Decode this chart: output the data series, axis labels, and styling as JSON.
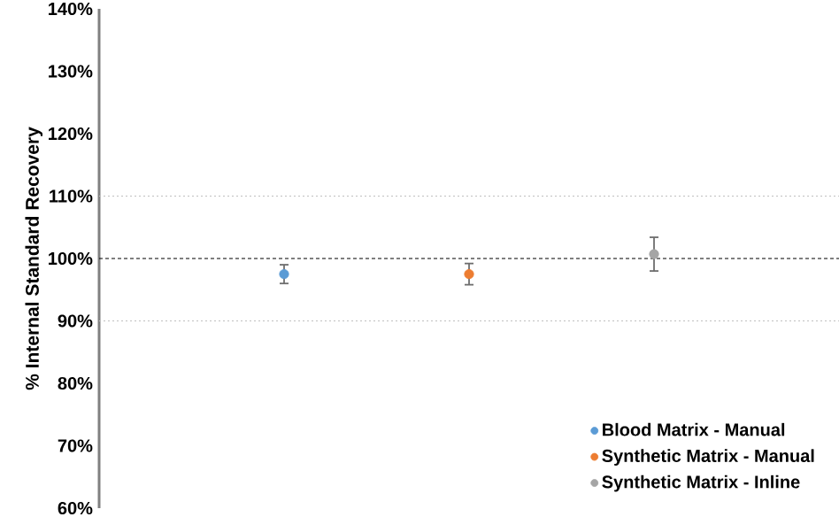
{
  "chart_data": {
    "type": "scatter",
    "ylabel": "% Internal Standard Recovery",
    "categories": [
      null,
      null,
      null
    ],
    "series": [
      {
        "name": "Blood Matrix - Manual",
        "color": "#5b9bd5",
        "values": [
          97.5,
          null,
          null
        ],
        "errors": [
          1.5,
          null,
          null
        ]
      },
      {
        "name": "Synthetic Matrix - Manual",
        "color": "#ed7d31",
        "values": [
          null,
          97.5,
          null
        ],
        "errors": [
          null,
          1.7,
          null
        ]
      },
      {
        "name": "Synthetic Matrix - Inline",
        "color": "#a5a5a5",
        "values": [
          null,
          null,
          100.7
        ],
        "errors": [
          null,
          null,
          2.7
        ]
      }
    ],
    "ylim": [
      60,
      140
    ],
    "yticks": [
      {
        "value": 60,
        "label": "60%"
      },
      {
        "value": 70,
        "label": "70%"
      },
      {
        "value": 80,
        "label": "80%"
      },
      {
        "value": 90,
        "label": "90%"
      },
      {
        "value": 100,
        "label": "100%"
      },
      {
        "value": 110,
        "label": "110%"
      },
      {
        "value": 120,
        "label": "120%"
      },
      {
        "value": 130,
        "label": "130%"
      },
      {
        "value": 140,
        "label": "140%"
      }
    ],
    "ref_lines": [
      {
        "axis": "y",
        "value": 100,
        "color": "#000000",
        "line_style": "dashed"
      },
      {
        "axis": "y",
        "value": 90,
        "color": "#bfbfbf",
        "line_style": "dotted"
      },
      {
        "axis": "y",
        "value": 110,
        "color": "#bfbfbf",
        "line_style": "dotted"
      }
    ],
    "legend": "bottom right",
    "marker": "circle",
    "grid": false
  }
}
